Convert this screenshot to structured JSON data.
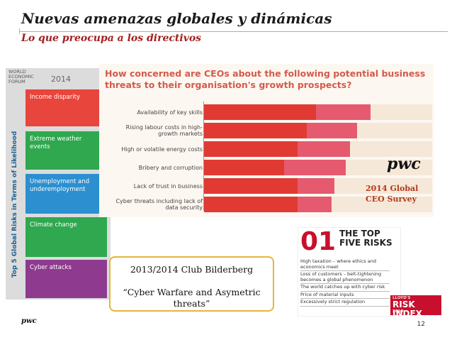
{
  "slide": {
    "title": "Nuevas amenazas globales y dinámicas",
    "subtitle": "Lo que preocupa a los directivos",
    "page_number": "12",
    "footer_logo": "pwc"
  },
  "wef": {
    "logo_lines": [
      "WORLD",
      "ECONOMIC",
      "FORUM"
    ],
    "year": "2014",
    "vertical_label": "Top 5 Global Risks in Terms of Likelihood",
    "risks": [
      {
        "label": "Income disparity",
        "color": "#e8453c"
      },
      {
        "label": "Extreme weather events",
        "color": "#2fa84f"
      },
      {
        "label": "Unemployment and underemployment",
        "color": "#2b8fd0"
      },
      {
        "label": "Climate change",
        "color": "#2fa84f"
      },
      {
        "label": "Cyber attacks",
        "color": "#8e3a8f"
      }
    ]
  },
  "ceo_survey": {
    "question": "How concerned are CEOs about the following potential business threats to their organisation's growth prospects?",
    "pwc_logo": "pwc",
    "note_lines": [
      "2014 Global",
      "CEO Survey"
    ],
    "colors": {
      "extremely": "#e03a33",
      "somewhat": "#e55a6e"
    },
    "chart_data": {
      "type": "bar",
      "stacked": true,
      "orientation": "horizontal",
      "categories": [
        "Availability of key skills",
        "Rising labour costs in high-growth markets",
        "High or volatile energy costs",
        "Bribery and corruption",
        "Lack of trust in business",
        "Cyber threats including lack of data security"
      ],
      "category_lines": [
        [
          "Availability of key skills"
        ],
        [
          "Rising labour costs in high-",
          "growth markets"
        ],
        [
          "High or volatile energy costs"
        ],
        [
          "Bribery and corruption"
        ],
        [
          "Lack of trust in business"
        ],
        [
          "Cyber threats including lack of",
          "data security"
        ]
      ],
      "series": [
        {
          "values": [
            49,
            45,
            41,
            35,
            41,
            41
          ]
        },
        {
          "values": [
            24,
            22,
            23,
            27,
            16,
            15
          ]
        }
      ],
      "xlim": [
        0,
        100
      ]
    }
  },
  "bilderberg": {
    "line1": "2013/2014 Club Bilderberg",
    "line2": "“Cyber Warfare and Asymetric threats”"
  },
  "top_risks": {
    "number": "01",
    "title_lines": [
      "THE TOP",
      "FIVE RISKS"
    ],
    "items": [
      "High taxation – where ethics and economics meet",
      "Loss of customers – belt-tightening becomes a global phenomenon",
      "The world catches up with cyber risk",
      "Price of material inputs",
      "Excessively strict regulation"
    ],
    "badge_top": "LLOYD'S",
    "badge_main": "RISK INDEX",
    "badge_year": "2013"
  }
}
